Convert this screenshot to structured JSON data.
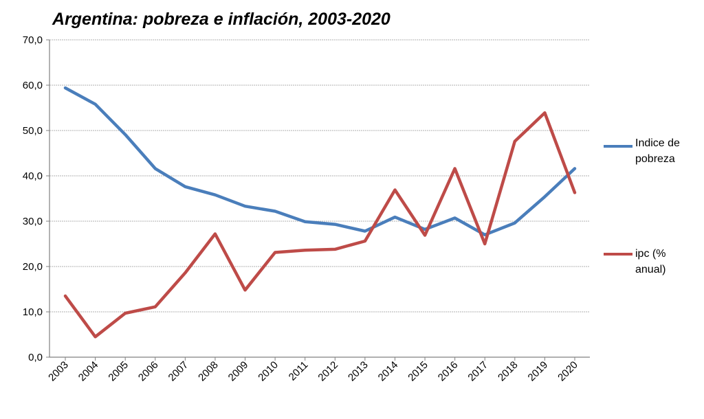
{
  "chart_data": {
    "type": "line",
    "title": "Argentina: pobreza e inflación, 2003-2020",
    "xlabel": "",
    "ylabel": "",
    "categories": [
      "2003",
      "2004",
      "2005",
      "2006",
      "2007",
      "2008",
      "2009",
      "2010",
      "2011",
      "2012",
      "2013",
      "2014",
      "2015",
      "2016",
      "2017",
      "2018",
      "2019",
      "2020"
    ],
    "ylim": [
      0,
      70
    ],
    "yticks": [
      "0,0",
      "10,0",
      "20,0",
      "30,0",
      "40,0",
      "50,0",
      "60,0",
      "70,0"
    ],
    "ytick_values": [
      0,
      10,
      20,
      30,
      40,
      50,
      60,
      70
    ],
    "grid": true,
    "legend_position": "right",
    "series": [
      {
        "name": "Indice de pobreza",
        "color": "#4a7ebb",
        "values": [
          59.4,
          55.8,
          49.1,
          41.6,
          37.6,
          35.8,
          33.3,
          32.2,
          29.9,
          29.3,
          27.8,
          30.9,
          28.2,
          30.7,
          27.0,
          29.6,
          35.4,
          41.6
        ]
      },
      {
        "name": "ipc (% anual)",
        "color": "#be4b48",
        "values": [
          13.5,
          4.5,
          9.7,
          11.1,
          18.6,
          27.2,
          14.8,
          23.1,
          23.6,
          23.8,
          25.6,
          36.9,
          26.9,
          41.6,
          25.0,
          47.6,
          53.9,
          36.3
        ]
      }
    ]
  },
  "legend": {
    "pobreza_line1": "Indice de",
    "pobreza_line2": "pobreza",
    "ipc_line1": "ipc (%",
    "ipc_line2": "anual)"
  }
}
